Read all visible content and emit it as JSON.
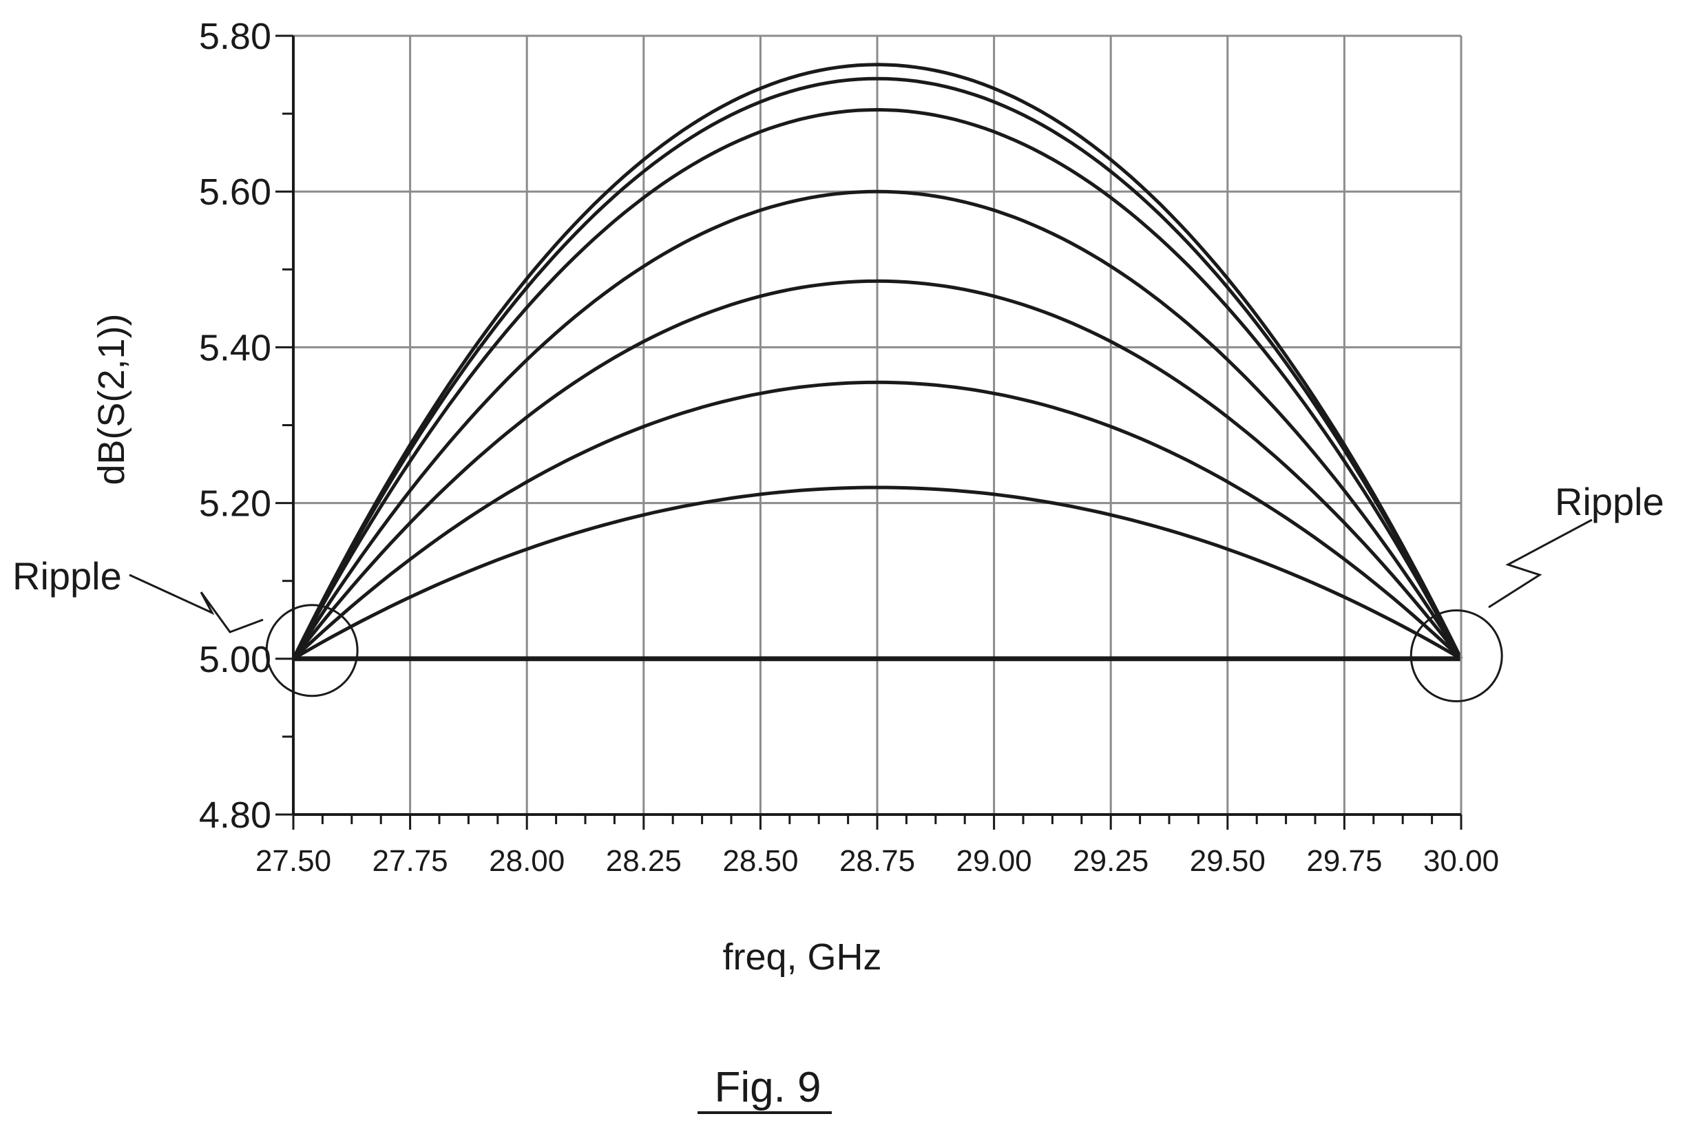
{
  "chart_data": {
    "type": "line",
    "xlabel": "freq, GHz",
    "ylabel": "dB(S(2,1))",
    "xlim": [
      27.5,
      30.0
    ],
    "ylim": [
      4.8,
      5.8
    ],
    "grid": true,
    "x_ticks": [
      "27.50",
      "27.75",
      "28.00",
      "28.25",
      "28.50",
      "28.75",
      "29.00",
      "29.25",
      "29.50",
      "29.75",
      "30.00"
    ],
    "y_ticks": [
      "4.80",
      "5.00",
      "5.20",
      "5.40",
      "5.60",
      "5.80"
    ],
    "x_minor_ticks_per_major": 4,
    "y_minor_ticks_per_major": 2,
    "curve_shape": "parabolic, symmetric about x center",
    "x_center": 28.75,
    "x_edge_value": 5.0,
    "series": [
      {
        "peak": 5.0
      },
      {
        "peak": 5.22
      },
      {
        "peak": 5.355
      },
      {
        "peak": 5.485
      },
      {
        "peak": 5.6
      },
      {
        "peak": 5.705
      },
      {
        "peak": 5.745
      },
      {
        "peak": 5.763
      }
    ],
    "annotations": [
      {
        "text": "Ripple",
        "x": 27.54,
        "y": 5.0
      },
      {
        "text": "Ripple",
        "x": 29.99,
        "y": 5.01
      }
    ],
    "colors": {
      "line": "#1a1a1a",
      "grid": "#8c8c8c"
    }
  },
  "figure": {
    "caption": "Fig. 9"
  }
}
